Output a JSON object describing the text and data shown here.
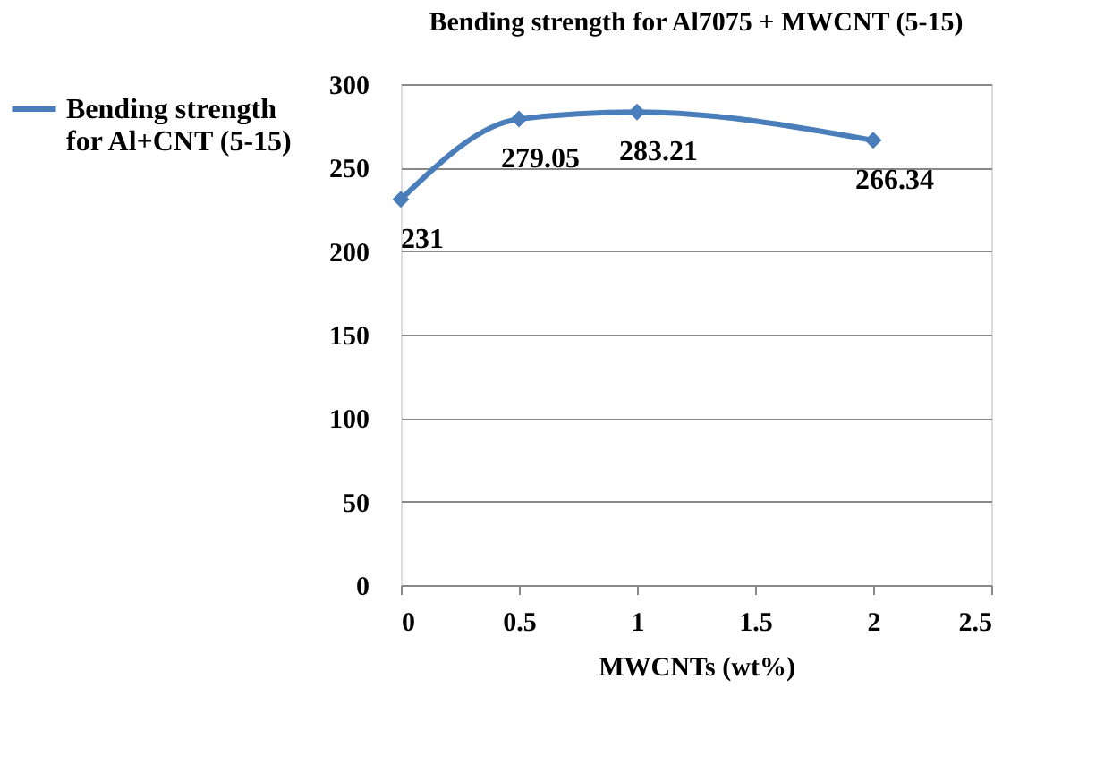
{
  "chart_data": {
    "type": "line",
    "title": "Bending strength for Al7075 + MWCNT (5-15)",
    "xlabel": "MWCNTs (wt%)",
    "x": [
      0,
      0.5,
      1,
      2
    ],
    "series": [
      {
        "name": "Bending strength for Al+CNT (5-15)",
        "color": "#4a7ebb",
        "values": [
          231,
          279.05,
          283.21,
          266.34
        ]
      }
    ],
    "xlim": [
      0,
      2.5
    ],
    "xticks": [
      0,
      0.5,
      1,
      1.5,
      2,
      2.5
    ],
    "ylim": [
      0,
      300
    ],
    "yticks": [
      0,
      50,
      100,
      150,
      200,
      250,
      300
    ],
    "grid": "y",
    "legend": "left",
    "marker": "diamond",
    "line_style": "solid",
    "data_labels": true
  }
}
